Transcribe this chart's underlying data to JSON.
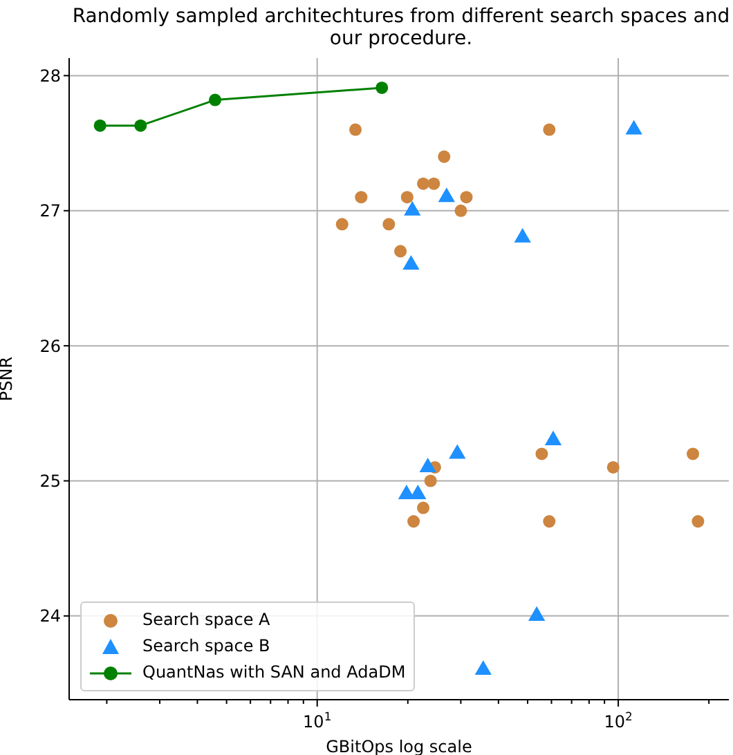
{
  "chart_data": {
    "type": "scatter",
    "title": "Randomly sampled architechtures from different search spaces and our procedure.",
    "xlabel": "GBitOps log scale",
    "ylabel": "PSNR",
    "log": "x",
    "grid": true,
    "legend": "bottom left",
    "xlim": [
      1.5,
      233
    ],
    "xticks": [
      {
        "value": 2,
        "label": null
      },
      {
        "value": 3,
        "label": null
      },
      {
        "value": 4,
        "label": null
      },
      {
        "value": 5,
        "label": null
      },
      {
        "value": 6,
        "label": null
      },
      {
        "value": 7,
        "label": null
      },
      {
        "value": 8,
        "label": null
      },
      {
        "value": 9,
        "label": null
      },
      {
        "value": 10,
        "label": "10$^{1}$"
      },
      {
        "value": 20,
        "label": null
      },
      {
        "value": 30,
        "label": null
      },
      {
        "value": 40,
        "label": null
      },
      {
        "value": 50,
        "label": null
      },
      {
        "value": 60,
        "label": null
      },
      {
        "value": 70,
        "label": null
      },
      {
        "value": 80,
        "label": null
      },
      {
        "value": 90,
        "label": null
      },
      {
        "value": 100,
        "label": "10$^{2}$"
      },
      {
        "value": 200,
        "label": null
      }
    ],
    "ylim": [
      23.38,
      28.13
    ],
    "yticks": [
      24,
      25,
      26,
      27,
      28
    ],
    "series": [
      {
        "name": "Search space A",
        "color": "#cd853f",
        "marker": "circle",
        "x": [
          13.4,
          14.0,
          12.1,
          17.3,
          18.9,
          26.4,
          22.5,
          24.4,
          19.9,
          31.3,
          30.0,
          59.0,
          24.6,
          23.8,
          22.5,
          20.9,
          55.7,
          59.0,
          96.2,
          177,
          184
        ],
        "values": [
          27.6,
          27.1,
          26.9,
          26.9,
          26.7,
          27.4,
          27.2,
          27.2,
          27.1,
          27.1,
          27.0,
          27.6,
          25.1,
          25.0,
          24.8,
          24.7,
          25.2,
          24.7,
          25.1,
          25.2,
          24.7
        ]
      },
      {
        "name": "Search space B",
        "color": "#1e90ff",
        "marker": "triangle",
        "x": [
          112.7,
          26.9,
          20.7,
          20.5,
          48.1,
          23.3,
          29.2,
          60.8,
          19.8,
          21.6,
          53.6,
          35.6
        ],
        "values": [
          27.6,
          27.1,
          27.0,
          26.6,
          26.8,
          25.1,
          25.2,
          25.3,
          24.9,
          24.9,
          24.0,
          23.6
        ]
      },
      {
        "name": "QuantNas with SAN and AdaDM",
        "color": "#008000",
        "type": "line",
        "marker": "circle",
        "x": [
          1.9,
          2.59,
          4.58,
          16.4
        ],
        "values": [
          27.63,
          27.63,
          27.82,
          27.91
        ]
      }
    ]
  }
}
